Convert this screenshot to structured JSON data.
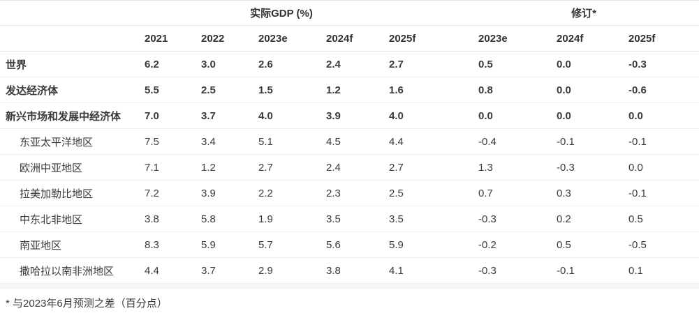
{
  "colors": {
    "text": "#3a3a3a",
    "border": "#e7e7e7",
    "row_border": "#ededed",
    "divider_band": "#f5f6f7",
    "background": "#ffffff"
  },
  "chart_data": {
    "type": "table",
    "group_headers": [
      {
        "label": "实际GDP (%)",
        "span": 5
      },
      {
        "label": "修订*",
        "span": 3
      }
    ],
    "columns": [
      "2021",
      "2022",
      "2023e",
      "2024f",
      "2025f",
      "2023e",
      "2024f",
      "2025f"
    ],
    "rows": [
      {
        "label": "世界",
        "bold": true,
        "indent": false,
        "values": [
          "6.2",
          "3.0",
          "2.6",
          "2.4",
          "2.7",
          "0.5",
          "0.0",
          "-0.3"
        ]
      },
      {
        "label": "发达经济体",
        "bold": true,
        "indent": false,
        "values": [
          "5.5",
          "2.5",
          "1.5",
          "1.2",
          "1.6",
          "0.8",
          "0.0",
          "-0.6"
        ]
      },
      {
        "label": "新兴市场和发展中经济体",
        "bold": true,
        "indent": false,
        "values": [
          "7.0",
          "3.7",
          "4.0",
          "3.9",
          "4.0",
          "0.0",
          "0.0",
          "0.0"
        ]
      },
      {
        "label": "东亚太平洋地区",
        "bold": false,
        "indent": true,
        "values": [
          "7.5",
          "3.4",
          "5.1",
          "4.5",
          "4.4",
          "-0.4",
          "-0.1",
          "-0.1"
        ]
      },
      {
        "label": "欧洲中亚地区",
        "bold": false,
        "indent": true,
        "values": [
          "7.1",
          "1.2",
          "2.7",
          "2.4",
          "2.7",
          "1.3",
          "-0.3",
          "0.0"
        ]
      },
      {
        "label": "拉美加勒比地区",
        "bold": false,
        "indent": true,
        "values": [
          "7.2",
          "3.9",
          "2.2",
          "2.3",
          "2.5",
          "0.7",
          "0.3",
          "-0.1"
        ]
      },
      {
        "label": "中东北非地区",
        "bold": false,
        "indent": true,
        "values": [
          "3.8",
          "5.8",
          "1.9",
          "3.5",
          "3.5",
          "-0.3",
          "0.2",
          "0.5"
        ]
      },
      {
        "label": "南亚地区",
        "bold": false,
        "indent": true,
        "values": [
          "8.3",
          "5.9",
          "5.7",
          "5.6",
          "5.9",
          "-0.2",
          "0.5",
          "-0.5"
        ]
      },
      {
        "label": "撒哈拉以南非洲地区",
        "bold": false,
        "indent": true,
        "values": [
          "4.4",
          "3.7",
          "2.9",
          "3.8",
          "4.1",
          "-0.3",
          "-0.1",
          "0.1"
        ]
      }
    ],
    "footnote": "* 与2023年6月预测之差（百分点）"
  }
}
